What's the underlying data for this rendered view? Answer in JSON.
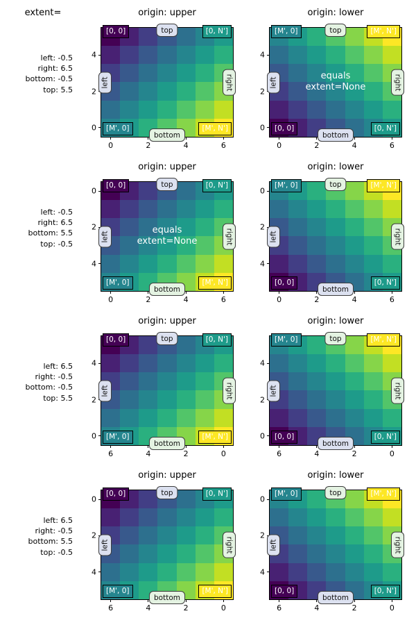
{
  "figure": {
    "corner_title": "extent="
  },
  "rows": [
    {
      "extent_label": "left: -0.5\nright: 6.5\nbottom: -0.5\ntop: 5.5",
      "panels": [
        {
          "title": "origin: upper",
          "origin": "upper",
          "note": null
        },
        {
          "title": "origin: lower",
          "origin": "lower",
          "note": "equals\nextent=None"
        }
      ]
    },
    {
      "extent_label": "left: -0.5\nright: 6.5\nbottom: 5.5\ntop: -0.5",
      "panels": [
        {
          "title": "origin: upper",
          "origin": "upper",
          "note": "equals\nextent=None"
        },
        {
          "title": "origin: lower",
          "origin": "lower",
          "note": null
        }
      ]
    },
    {
      "extent_label": "left: 6.5\nright: -0.5\nbottom: -0.5\ntop: 5.5",
      "panels": [
        {
          "title": "origin: upper",
          "origin": "upper",
          "note": null
        },
        {
          "title": "origin: lower",
          "origin": "lower",
          "note": null
        }
      ]
    },
    {
      "extent_label": "left: 6.5\nright: -0.5\nbottom: 5.5\ntop: -0.5",
      "panels": [
        {
          "title": "origin: upper",
          "origin": "upper",
          "note": null
        },
        {
          "title": "origin: lower",
          "origin": "lower",
          "note": null
        }
      ]
    }
  ],
  "corner_labels": {
    "upper": {
      "tl": "[0, 0]",
      "tr": "[0, N']",
      "bl": "[M', 0]",
      "br": "[M', N']"
    },
    "lower": {
      "tl": "[M', 0]",
      "tr": "[M', N']",
      "bl": "[0, 0]",
      "br": "[0, N']"
    }
  },
  "corner_indices": {
    "[0, 0]": [
      0,
      0
    ],
    "[0, N']": [
      0,
      6
    ],
    "[M', 0]": [
      5,
      0
    ],
    "[M', N']": [
      5,
      6
    ]
  },
  "edge_labels": {
    "top": "top",
    "bottom": "bottom",
    "left": "left",
    "right": "right"
  },
  "pill_tints": {
    "upper": {
      "top": "lavender",
      "bottom": "green"
    },
    "lower": {
      "top": "green",
      "bottom": "lavender"
    },
    "left": "lavender",
    "right": "green"
  },
  "colors": {
    "palette_viridis": [
      "#440154",
      "#482173",
      "#423e85",
      "#38598c",
      "#2d708e",
      "#25858e",
      "#1e9b8a",
      "#2ab07f",
      "#52c569",
      "#86d549",
      "#c2df23",
      "#fde725"
    ],
    "pill_lavender": "#dce1f0",
    "pill_green": "#e4f3e2",
    "note_text": "#ffffff",
    "corner_text": "#ffffff",
    "axis_color": "#000000",
    "background": "#ffffff"
  },
  "chart_data": {
    "type": "heatmap",
    "colormap": "viridis",
    "title": "extent=",
    "column_titles": [
      "origin: upper",
      "origin: lower"
    ],
    "grid_shape": [
      6,
      7
    ],
    "matrix": [
      [
        0,
        1,
        2,
        3,
        4,
        5,
        6
      ],
      [
        1,
        2,
        3,
        4,
        5,
        6,
        7
      ],
      [
        2,
        3,
        4,
        5,
        6,
        7,
        8
      ],
      [
        3,
        4,
        5,
        6,
        7,
        8,
        9
      ],
      [
        4,
        5,
        6,
        7,
        8,
        9,
        10
      ],
      [
        5,
        6,
        7,
        8,
        9,
        10,
        11
      ]
    ],
    "value_range": [
      0,
      11
    ],
    "subplot_grid": {
      "rows": 4,
      "cols": 2
    },
    "row_extents": [
      {
        "left": -0.5,
        "right": 6.5,
        "bottom": -0.5,
        "top": 5.5
      },
      {
        "left": -0.5,
        "right": 6.5,
        "bottom": 5.5,
        "top": -0.5
      },
      {
        "left": 6.5,
        "right": -0.5,
        "bottom": -0.5,
        "top": 5.5
      },
      {
        "left": 6.5,
        "right": -0.5,
        "bottom": 5.5,
        "top": -0.5
      }
    ],
    "x_ticks": [
      0,
      2,
      4,
      6
    ],
    "y_ticks": [
      0,
      2,
      4
    ],
    "annotations": {
      "corner_labels": [
        "[0, 0]",
        "[0, N']",
        "[M', 0]",
        "[M', N']"
      ],
      "edge_labels": [
        "top",
        "bottom",
        "left",
        "right"
      ],
      "extent_none_note": "equals\nextent=None",
      "note_locations": [
        "row 1 / origin: lower",
        "row 2 / origin: upper"
      ]
    },
    "legend": "none",
    "grid": "off"
  }
}
